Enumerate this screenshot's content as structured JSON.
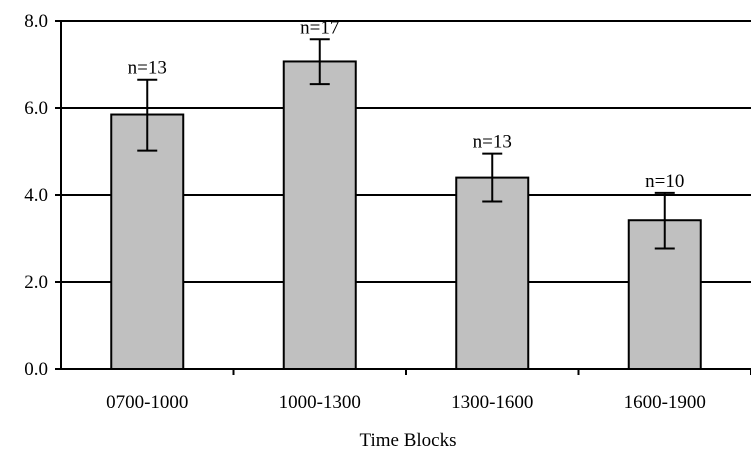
{
  "chart_data": {
    "type": "bar",
    "title": "",
    "xlabel": "Time Blocks",
    "ylabel": "",
    "ylim": [
      0,
      8
    ],
    "yticks": [
      0,
      2,
      4,
      6,
      8
    ],
    "ytick_labels": [
      "0.0",
      "2.0",
      "4.0",
      "6.0",
      "8.0"
    ],
    "grid": true,
    "legend": "none",
    "categories": [
      "0700-1000",
      "1000-1300",
      "1300-1600",
      "1600-1900"
    ],
    "values": [
      5.85,
      7.07,
      4.4,
      3.42
    ],
    "error_low": [
      5.02,
      6.55,
      3.85,
      2.77
    ],
    "error_high": [
      6.65,
      7.58,
      4.95,
      4.05
    ],
    "annotations": [
      "n=13",
      "n=17",
      "n=13",
      "n=10"
    ],
    "colors": {
      "bar_fill": "#c0c0c0",
      "bar_stroke": "#000000",
      "gridline": "#000000",
      "error_bar": "#000000"
    }
  }
}
